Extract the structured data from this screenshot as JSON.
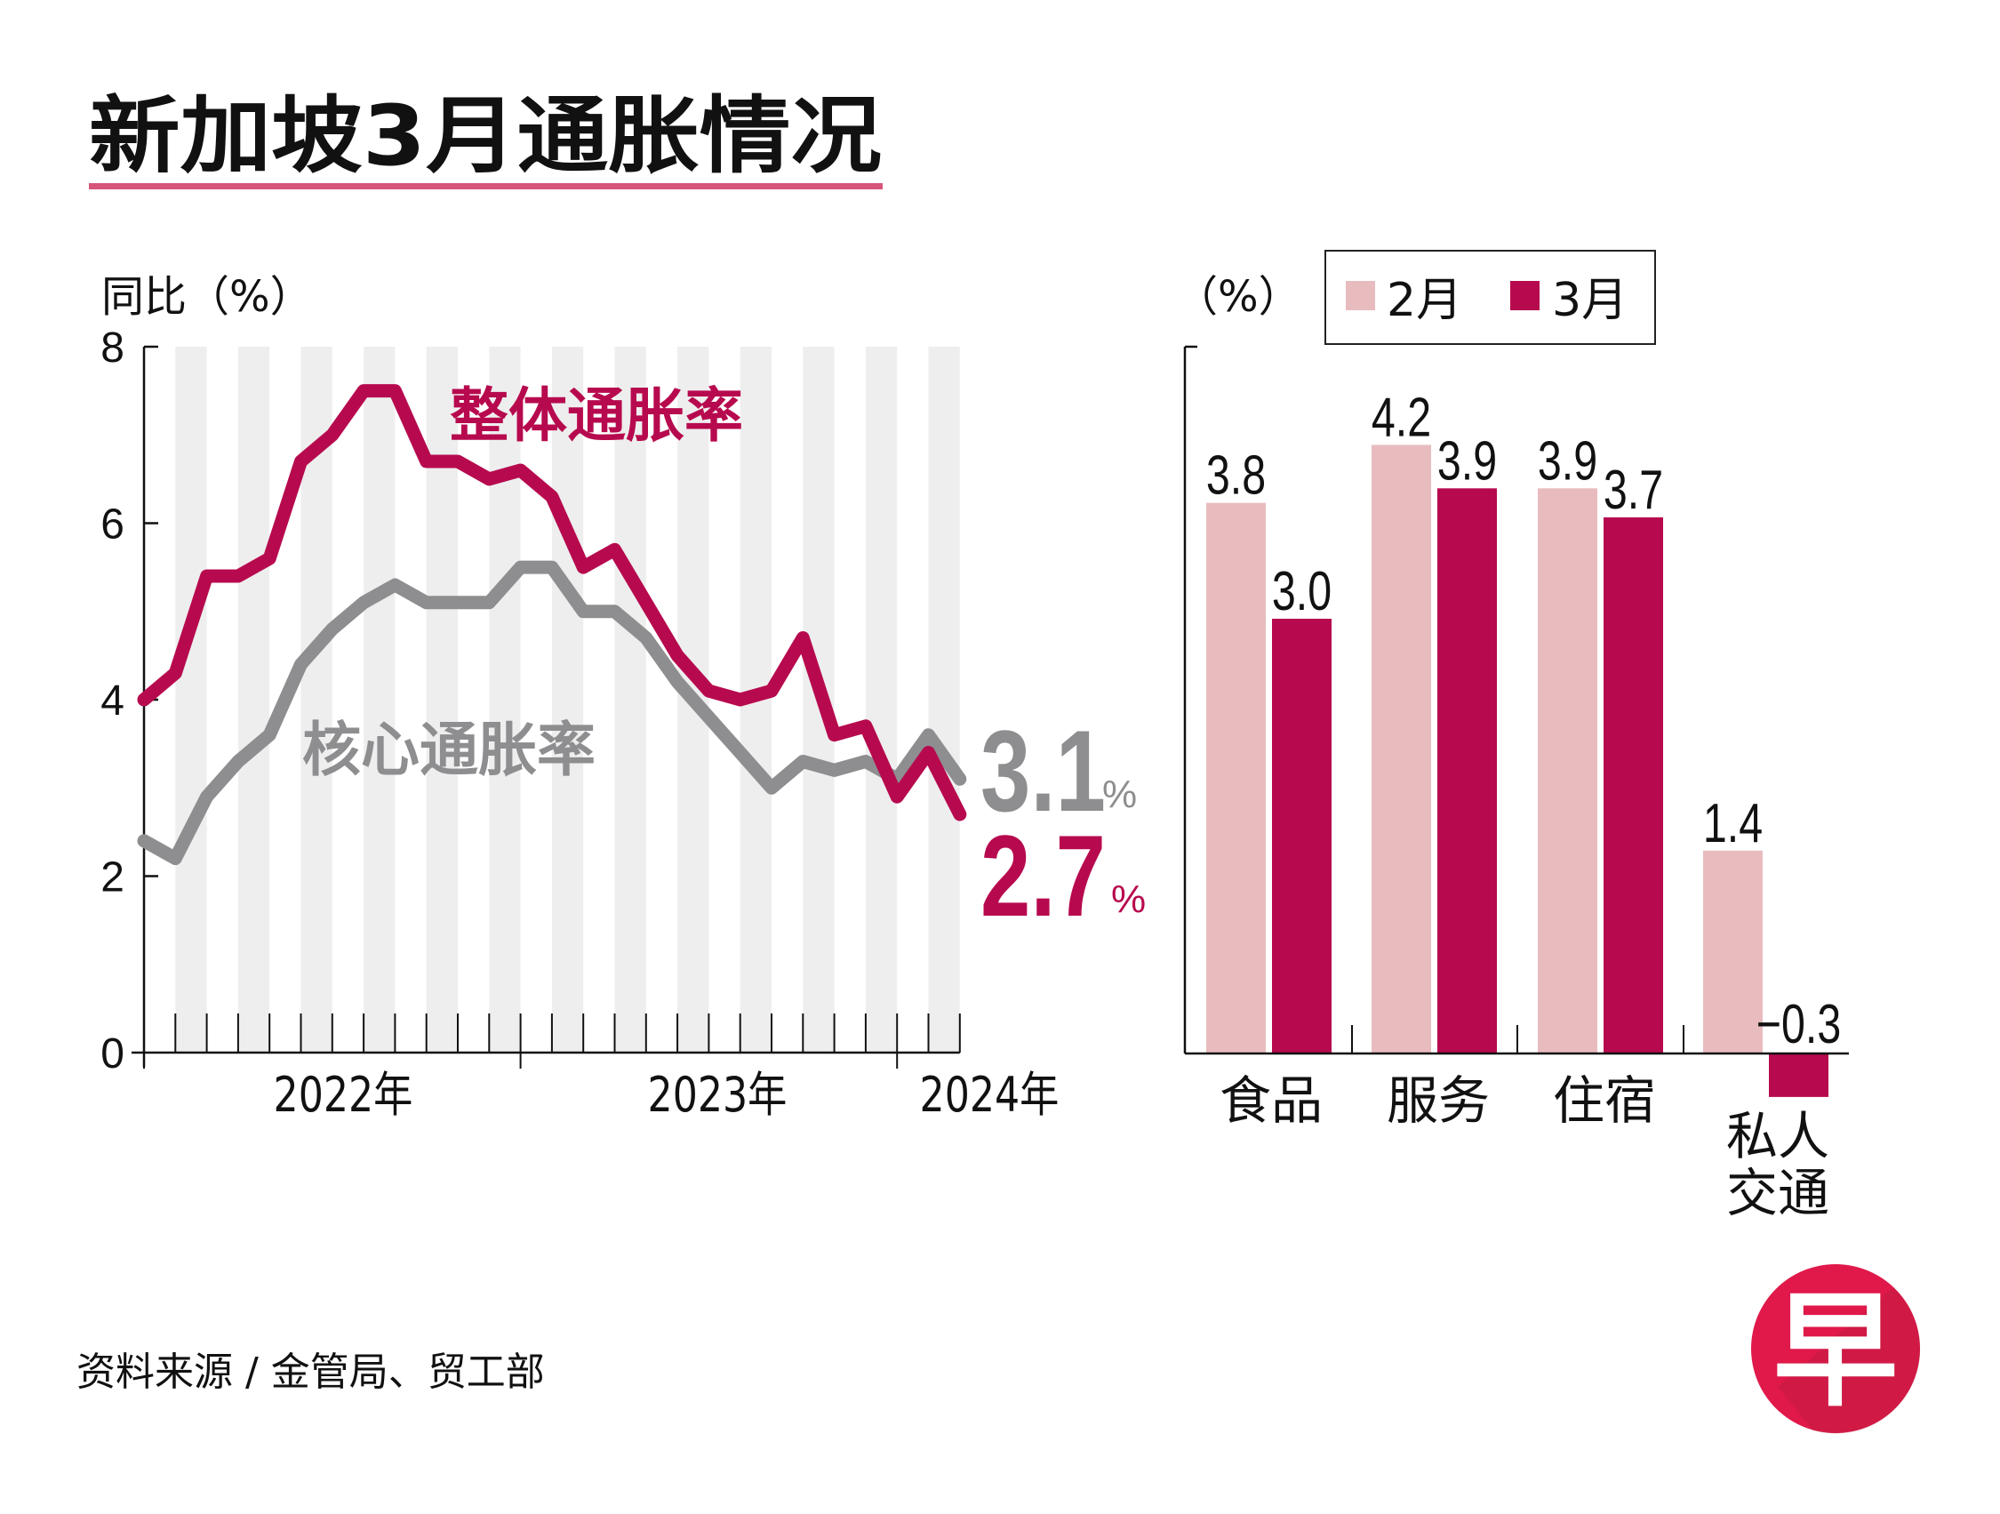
{
  "title": "新加坡3月通胀情况",
  "colors": {
    "headline": "#b70a4e",
    "core": "#8e8e90",
    "feb": "#e8bcbf",
    "mar": "#b70a4e",
    "stripe": "#eeeeee",
    "underline": "#d6557a",
    "logo": "#e0194a",
    "logo_dark": "#b31e3c"
  },
  "source": "资料来源 / 金管局、贸工部",
  "logo": {
    "glyph": "早",
    "icon": "zaobao-logo-icon"
  },
  "chart_data": [
    {
      "type": "line",
      "ylabel": "同比（%）",
      "ylim": [
        0,
        8
      ],
      "yticks": [
        0,
        2,
        4,
        6,
        8
      ],
      "grid": false,
      "background": "alternating monthly stripes",
      "year_labels": [
        "2022年",
        "2023年",
        "2024年"
      ],
      "x": [
        "2022-01",
        "2022-02",
        "2022-03",
        "2022-04",
        "2022-05",
        "2022-06",
        "2022-07",
        "2022-08",
        "2022-09",
        "2022-10",
        "2022-11",
        "2022-12",
        "2023-01",
        "2023-02",
        "2023-03",
        "2023-04",
        "2023-05",
        "2023-06",
        "2023-07",
        "2023-08",
        "2023-09",
        "2023-10",
        "2023-11",
        "2023-12",
        "2024-01",
        "2024-02",
        "2024-03"
      ],
      "series": [
        {
          "name": "整体通胀率",
          "key": "headline",
          "values": [
            4.0,
            4.3,
            5.4,
            5.4,
            5.6,
            6.7,
            7.0,
            7.5,
            7.5,
            6.7,
            6.7,
            6.5,
            6.6,
            6.3,
            5.5,
            5.7,
            5.1,
            4.5,
            4.1,
            4.0,
            4.1,
            4.7,
            3.6,
            3.7,
            2.9,
            3.4,
            2.7
          ],
          "end_label": "2.7",
          "end_unit": "%"
        },
        {
          "name": "核心通胀率",
          "key": "core",
          "values": [
            2.4,
            2.2,
            2.9,
            3.3,
            3.6,
            4.4,
            4.8,
            5.1,
            5.3,
            5.1,
            5.1,
            5.1,
            5.5,
            5.5,
            5.0,
            5.0,
            4.7,
            4.2,
            3.8,
            3.4,
            3.0,
            3.3,
            3.2,
            3.3,
            3.1,
            3.6,
            3.1
          ],
          "end_label": "3.1",
          "end_unit": "%"
        }
      ]
    },
    {
      "type": "bar",
      "ylabel": "（%）",
      "categories": [
        "食品",
        "服务",
        "住宿",
        "私人交通"
      ],
      "category_lines": [
        [
          "食品"
        ],
        [
          "服务"
        ],
        [
          "住宿"
        ],
        [
          "私人",
          "交通"
        ]
      ],
      "legend": [
        "2月",
        "3月"
      ],
      "legend_position": "top",
      "series": [
        {
          "name": "2月",
          "values": [
            3.8,
            4.2,
            3.9,
            1.4
          ],
          "labels": [
            "3.8",
            "4.2",
            "3.9",
            "1.4"
          ]
        },
        {
          "name": "3月",
          "values": [
            3.0,
            3.9,
            3.7,
            -0.3
          ],
          "labels": [
            "3.0",
            "3.9",
            "3.7",
            "−0.3"
          ]
        }
      ]
    }
  ]
}
